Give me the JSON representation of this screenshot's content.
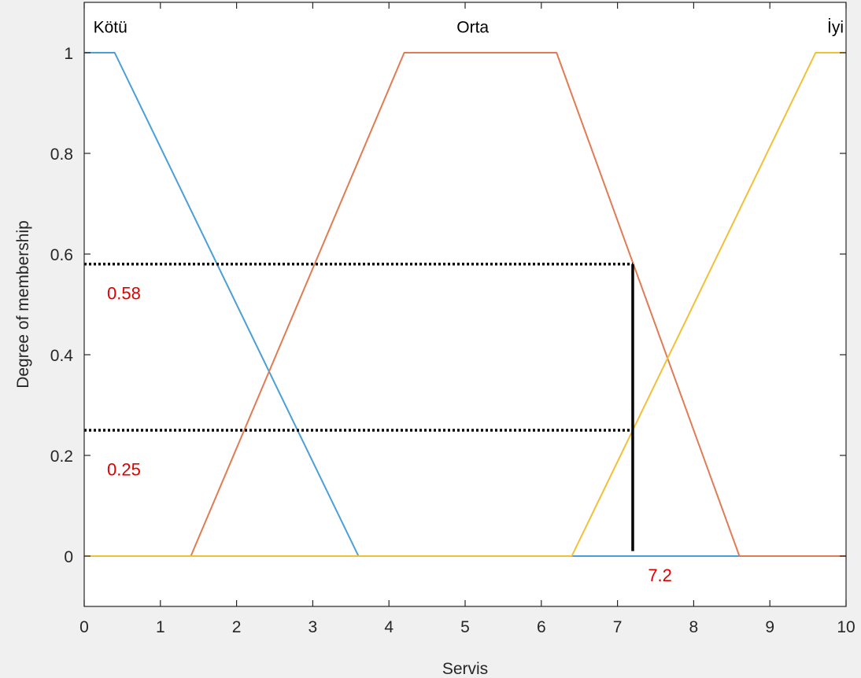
{
  "chart_data": {
    "type": "line",
    "title": "",
    "xlabel": "Servis",
    "ylabel": "Degree of membership",
    "xlim": [
      0,
      10
    ],
    "ylim": [
      -0.1,
      1.1
    ],
    "xticks": [
      0,
      1,
      2,
      3,
      4,
      5,
      6,
      7,
      8,
      9,
      10
    ],
    "yticks": [
      0,
      0.2,
      0.4,
      0.6,
      0.8,
      1
    ],
    "grid": false,
    "series": [
      {
        "name": "Kötü",
        "color": "#4a9fd8",
        "x": [
          0,
          0.4,
          3.6,
          10
        ],
        "y": [
          1,
          1,
          0,
          0
        ]
      },
      {
        "name": "Orta",
        "color": "#e07b54",
        "x": [
          0,
          1.4,
          4.2,
          6.2,
          8.6,
          10
        ],
        "y": [
          0,
          0,
          1,
          1,
          0,
          0
        ]
      },
      {
        "name": "İyi",
        "color": "#f2c037",
        "x": [
          0,
          6.4,
          9.6,
          10
        ],
        "y": [
          0,
          0,
          1,
          1
        ]
      }
    ],
    "series_labels": [
      {
        "text": "Kötü",
        "x": 0.12,
        "y": 1.04
      },
      {
        "text": "Orta",
        "x": 5.1,
        "y": 1.04
      },
      {
        "text": "İyi",
        "x": 10,
        "y": 1.04
      }
    ],
    "annotations": [
      {
        "kind": "hline-dotted",
        "y": 0.58,
        "x_from": 0,
        "x_to": 7.2
      },
      {
        "kind": "hline-dotted",
        "y": 0.25,
        "x_from": 0,
        "x_to": 7.2
      },
      {
        "kind": "vline",
        "x": 7.2,
        "y_from": 0.01,
        "y_to": 0.58
      },
      {
        "kind": "text",
        "text": "0.58",
        "x": 0.3,
        "y": 0.51
      },
      {
        "kind": "text",
        "text": "0.25",
        "x": 0.3,
        "y": 0.16
      },
      {
        "kind": "text",
        "text": "7.2",
        "x": 7.4,
        "y": -0.05
      }
    ]
  }
}
